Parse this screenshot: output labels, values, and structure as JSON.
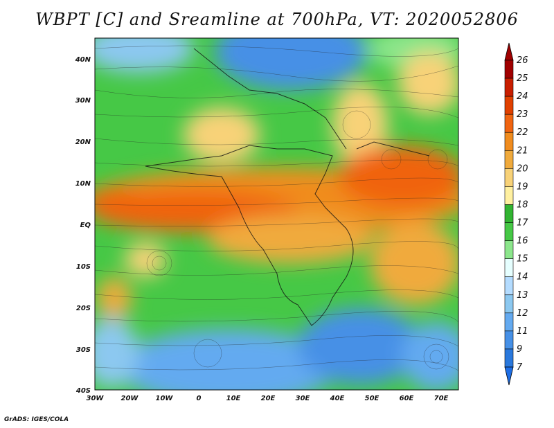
{
  "title": "WBPT [C] and Sreamline at 700hPa, VT: 2020052806",
  "credit": "GrADS: IGES/COLA",
  "map": {
    "lon_labels": [
      "30W",
      "20W",
      "10W",
      "0",
      "10E",
      "20E",
      "30E",
      "40E",
      "50E",
      "60E",
      "70E"
    ],
    "lat_labels": [
      "40N",
      "30N",
      "20N",
      "10N",
      "EQ",
      "10S",
      "20S",
      "30S",
      "40S"
    ]
  },
  "colorbar": {
    "labels": [
      "26",
      "25",
      "24",
      "23",
      "22",
      "21",
      "20",
      "19",
      "18",
      "17",
      "16",
      "15",
      "14",
      "13",
      "12",
      "11",
      "9",
      "7"
    ],
    "colors": [
      "#a00000",
      "#c81e00",
      "#e04000",
      "#f06410",
      "#f08c1e",
      "#f0aa3c",
      "#f8d278",
      "#fff0a0",
      "#32b432",
      "#46c846",
      "#8ce68c",
      "#e6ffff",
      "#b4dcff",
      "#8cc8f0",
      "#64aaf0",
      "#4690e6",
      "#2a78dc"
    ],
    "top_color": "#a00000",
    "bottom_color": "#1e6ee6"
  },
  "chart_data": {
    "type": "heatmap",
    "variable": "WBPT [C]",
    "overlay": "Streamline",
    "level": "700hPa",
    "valid_time": "2020052806",
    "x_range": [
      "30W",
      "75E"
    ],
    "y_range": [
      "40S",
      "45N"
    ],
    "scale_values": [
      7,
      9,
      11,
      12,
      13,
      14,
      15,
      16,
      17,
      18,
      19,
      20,
      21,
      22,
      23,
      24,
      25,
      26
    ]
  }
}
